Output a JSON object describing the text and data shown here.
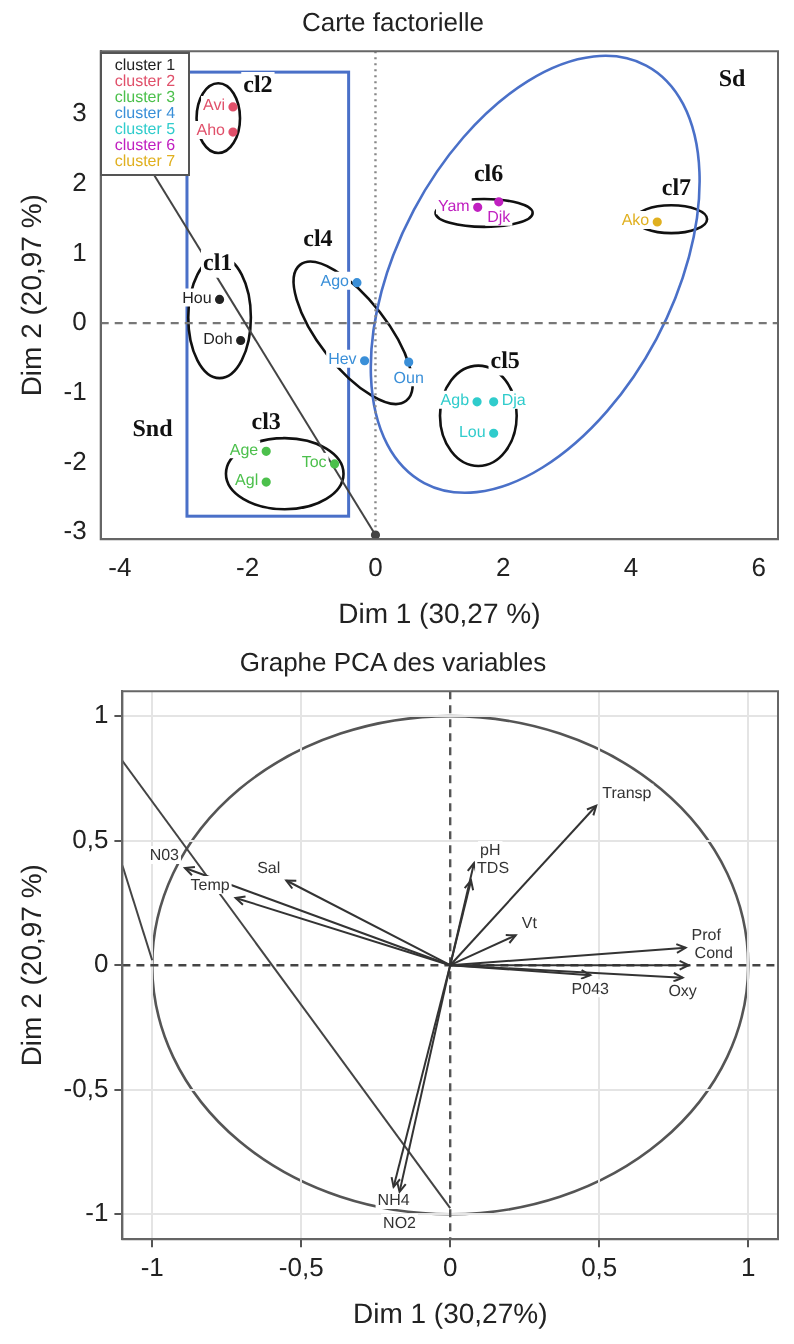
{
  "chart_data": [
    {
      "type": "scatter",
      "title": "Carte factorielle",
      "xlabel": "Dim 1 (30,27 %)",
      "ylabel": "Dim 2 (20,97 %)",
      "xlim": [
        -4.3,
        6.3
      ],
      "ylim": [
        -3.1,
        3.9
      ],
      "xticks": [
        -4,
        -2,
        0,
        2,
        4,
        6
      ],
      "yticks": [
        -3,
        -2,
        -1,
        0,
        1,
        2,
        3
      ],
      "grid": false,
      "legend": "top left",
      "marker": "circle",
      "ref_lines": [
        {
          "axis": "x",
          "value": 0,
          "line_style": "dotted",
          "color": "#888888"
        },
        {
          "axis": "y",
          "value": 0,
          "line_style": "dashed",
          "color": "#777777"
        }
      ],
      "series": [
        {
          "name": "cluster 1",
          "color": "#222222",
          "x": [
            -2.44,
            -2.11
          ],
          "values": [
            0.34,
            -0.25
          ],
          "value_labels": [
            "Hou",
            "Doh"
          ]
        },
        {
          "name": "cluster 2",
          "color": "#e0506a",
          "x": [
            -2.23,
            -2.23
          ],
          "values": [
            3.1,
            2.74
          ],
          "value_labels": [
            "Avi",
            "Aho"
          ]
        },
        {
          "name": "cluster 3",
          "color": "#4cc04c",
          "x": [
            -1.71,
            -1.71,
            -0.64
          ],
          "values": [
            -1.84,
            -2.28,
            -2.02
          ],
          "value_labels": [
            "Age",
            "Agl",
            "Toc"
          ]
        },
        {
          "name": "cluster 4",
          "color": "#3a8fd8",
          "x": [
            -0.29,
            -0.17,
            0.52
          ],
          "values": [
            0.58,
            -0.54,
            -0.56
          ],
          "value_labels": [
            "Ago",
            "Hev",
            "Oun"
          ]
        },
        {
          "name": "cluster 5",
          "color": "#30cccc",
          "x": [
            1.59,
            1.85,
            1.85
          ],
          "values": [
            -1.13,
            -1.13,
            -1.58
          ],
          "value_labels": [
            "Agb",
            "Dja",
            "Lou"
          ]
        },
        {
          "name": "cluster 6",
          "color": "#c020c0",
          "x": [
            1.6,
            1.93
          ],
          "values": [
            1.66,
            1.74
          ],
          "value_labels": [
            "Yam",
            "Djk"
          ]
        },
        {
          "name": "cluster 7",
          "color": "#e0b020",
          "x": [
            4.41
          ],
          "values": [
            1.45
          ],
          "value_labels": [
            "Ako"
          ]
        },
        {
          "type": "line",
          "color": "#444444",
          "x": [
            -4.28,
            0
          ],
          "values": [
            3.34,
            -3.04
          ]
        }
      ],
      "annotations": [
        "cl1",
        "cl2",
        "cl3",
        "cl4",
        "cl5",
        "cl6",
        "cl7",
        "Sd",
        "Snd"
      ]
    },
    {
      "type": "line",
      "title": "Graphe PCA des variables",
      "xlabel": "Dim 1 (30,27%)",
      "ylabel": "Dim 2 (20,97 %)",
      "xlim": [
        -1.1,
        1.1
      ],
      "ylim": [
        -1.1,
        1.1
      ],
      "xticks": [
        -1,
        {
          "value": -0.5,
          "label": "-0,5"
        },
        0,
        {
          "value": 0.5,
          "label": "0,5"
        },
        1
      ],
      "yticks": [
        -1,
        {
          "value": -0.5,
          "label": "-0,5"
        },
        0,
        {
          "value": 0.5,
          "label": "0,5"
        },
        1
      ],
      "grid": true,
      "marker": "none",
      "ref_lines": [
        {
          "axis": "x",
          "value": 0,
          "line_style": "dashed",
          "color": "#555555"
        },
        {
          "axis": "y",
          "value": 0,
          "line_style": "dashed",
          "color": "#444444"
        }
      ],
      "series": [
        {
          "color": "#333333",
          "x": [
            0,
            -0.89
          ],
          "values": [
            0,
            0.39
          ],
          "value_labels": [
            null,
            "N03"
          ]
        },
        {
          "color": "#333333",
          "x": [
            0,
            -0.55
          ],
          "values": [
            0,
            0.34
          ],
          "value_labels": [
            null,
            "Sal"
          ]
        },
        {
          "color": "#333333",
          "x": [
            0,
            -0.72
          ],
          "values": [
            0,
            0.27
          ],
          "value_labels": [
            null,
            "Temp"
          ]
        },
        {
          "color": "#333333",
          "x": [
            0,
            -0.19
          ],
          "values": [
            0,
            -0.89
          ],
          "value_labels": [
            null,
            "NH4"
          ]
        },
        {
          "color": "#333333",
          "x": [
            0,
            -0.17
          ],
          "values": [
            0,
            -0.91
          ],
          "value_labels": [
            null,
            "NO2"
          ]
        },
        {
          "color": "#333333",
          "x": [
            0,
            0.08
          ],
          "values": [
            0,
            0.41
          ],
          "value_labels": [
            null,
            "pH"
          ]
        },
        {
          "color": "#333333",
          "x": [
            0,
            0.07
          ],
          "values": [
            0,
            0.34
          ],
          "value_labels": [
            null,
            "TDS"
          ]
        },
        {
          "color": "#333333",
          "x": [
            0,
            0.49
          ],
          "values": [
            0,
            0.64
          ],
          "value_labels": [
            null,
            "Transp"
          ]
        },
        {
          "color": "#333333",
          "x": [
            0,
            0.22
          ],
          "values": [
            0,
            0.12
          ],
          "value_labels": [
            null,
            "Vt"
          ]
        },
        {
          "color": "#333333",
          "x": [
            0,
            0.79
          ],
          "values": [
            0,
            0.07
          ],
          "value_labels": [
            null,
            "Prof"
          ]
        },
        {
          "color": "#333333",
          "x": [
            0,
            0.8
          ],
          "values": [
            0,
            0
          ],
          "value_labels": [
            null,
            "Cond"
          ]
        },
        {
          "color": "#333333",
          "x": [
            0,
            0.78
          ],
          "values": [
            0,
            -0.05
          ],
          "value_labels": [
            null,
            "Oxy"
          ]
        },
        {
          "color": "#333333",
          "x": [
            0,
            0.47
          ],
          "values": [
            0,
            -0.04
          ],
          "value_labels": [
            null,
            "P043"
          ]
        },
        {
          "color": "#444444",
          "x": [
            -1.1,
            0
          ],
          "values": [
            0.82,
            -0.975
          ]
        },
        {
          "color": "#444444",
          "x": [
            -1.1,
            -1
          ],
          "values": [
            0.4,
            0.02
          ]
        }
      ]
    }
  ]
}
